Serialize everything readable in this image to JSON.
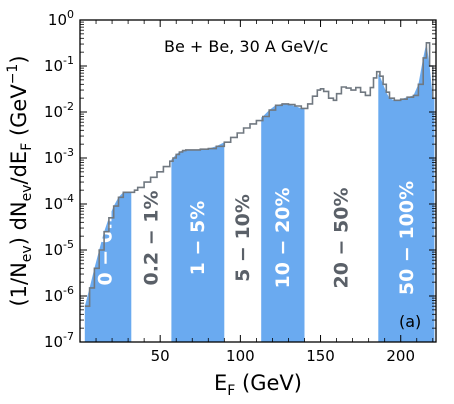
{
  "chart_data": {
    "type": "area",
    "title": "",
    "annotation": "Be + Be, 30 A GeV/c",
    "panel_label": "(a)",
    "xlabel": "E_F (GeV)",
    "ylabel": "(1/N_ev) dN_ev/dE_F (GeV^-1)",
    "x_scale": "linear",
    "y_scale": "log",
    "xlim": [
      0,
      222
    ],
    "ylim": [
      1e-07,
      1
    ],
    "x_ticks": [
      50,
      100,
      150,
      200
    ],
    "y_ticks": [
      {
        "value": 1e-07,
        "label": "10^-7"
      },
      {
        "value": 1e-06,
        "label": "10^-6"
      },
      {
        "value": 1e-05,
        "label": "10^-5"
      },
      {
        "value": 0.0001,
        "label": "10^-4"
      },
      {
        "value": 0.001,
        "label": "10^-3"
      },
      {
        "value": 0.01,
        "label": "10^-2"
      },
      {
        "value": 0.1,
        "label": "10^-1"
      },
      {
        "value": 1,
        "label": "10^0"
      }
    ],
    "grid": false,
    "colors": {
      "fill": "#6aaaf0",
      "line": "#707880",
      "dark_label": "#5a6068",
      "light_label": "#ffffff"
    },
    "bands": [
      {
        "label": "0 − 0.2%",
        "x_range": [
          0,
          32
        ],
        "filled": true
      },
      {
        "label": "0.2 − 1%",
        "x_range": [
          32,
          57
        ],
        "filled": false
      },
      {
        "label": "1 − 5%",
        "x_range": [
          57,
          90
        ],
        "filled": true
      },
      {
        "label": "5 − 10%",
        "x_range": [
          90,
          113
        ],
        "filled": false
      },
      {
        "label": "10 − 20%",
        "x_range": [
          113,
          140
        ],
        "filled": true
      },
      {
        "label": "20 − 50%",
        "x_range": [
          140,
          186
        ],
        "filled": false
      },
      {
        "label": "50 − 100%",
        "x_range": [
          186,
          222
        ],
        "filled": true
      }
    ],
    "series": [
      {
        "x": [
          3,
          6,
          9,
          12,
          15,
          18,
          21,
          24,
          27,
          30,
          32,
          34,
          36,
          40,
          44,
          48,
          52,
          56,
          58,
          60,
          62,
          64,
          66,
          70,
          75,
          80,
          85,
          90,
          94,
          98,
          102,
          106,
          110,
          114,
          118,
          122,
          126,
          130,
          134,
          138,
          140,
          142,
          145,
          148,
          150,
          152,
          155,
          158,
          160,
          163,
          166,
          169,
          172,
          175,
          178,
          181,
          183,
          185,
          187,
          189,
          191,
          193,
          196,
          200,
          204,
          208,
          211,
          214,
          216,
          218,
          220,
          221
        ],
        "y": [
          6e-07,
          1.5e-06,
          4e-06,
          1e-05,
          2.5e-05,
          5e-05,
          9e-05,
          0.00014,
          0.00018,
          0.00018,
          0.00018,
          0.0002,
          0.00023,
          0.0003,
          0.00038,
          0.0005,
          0.00065,
          0.00085,
          0.001,
          0.0012,
          0.00135,
          0.00145,
          0.0015,
          0.0015,
          0.00155,
          0.0016,
          0.0018,
          0.0022,
          0.0028,
          0.0035,
          0.0045,
          0.0055,
          0.0065,
          0.008,
          0.011,
          0.014,
          0.015,
          0.0145,
          0.0135,
          0.012,
          0.012,
          0.015,
          0.022,
          0.03,
          0.032,
          0.028,
          0.02,
          0.018,
          0.025,
          0.035,
          0.033,
          0.03,
          0.034,
          0.027,
          0.023,
          0.034,
          0.055,
          0.075,
          0.06,
          0.04,
          0.027,
          0.02,
          0.018,
          0.019,
          0.021,
          0.023,
          0.04,
          0.15,
          0.32,
          0.1,
          0.02,
          0.02
        ]
      }
    ]
  }
}
